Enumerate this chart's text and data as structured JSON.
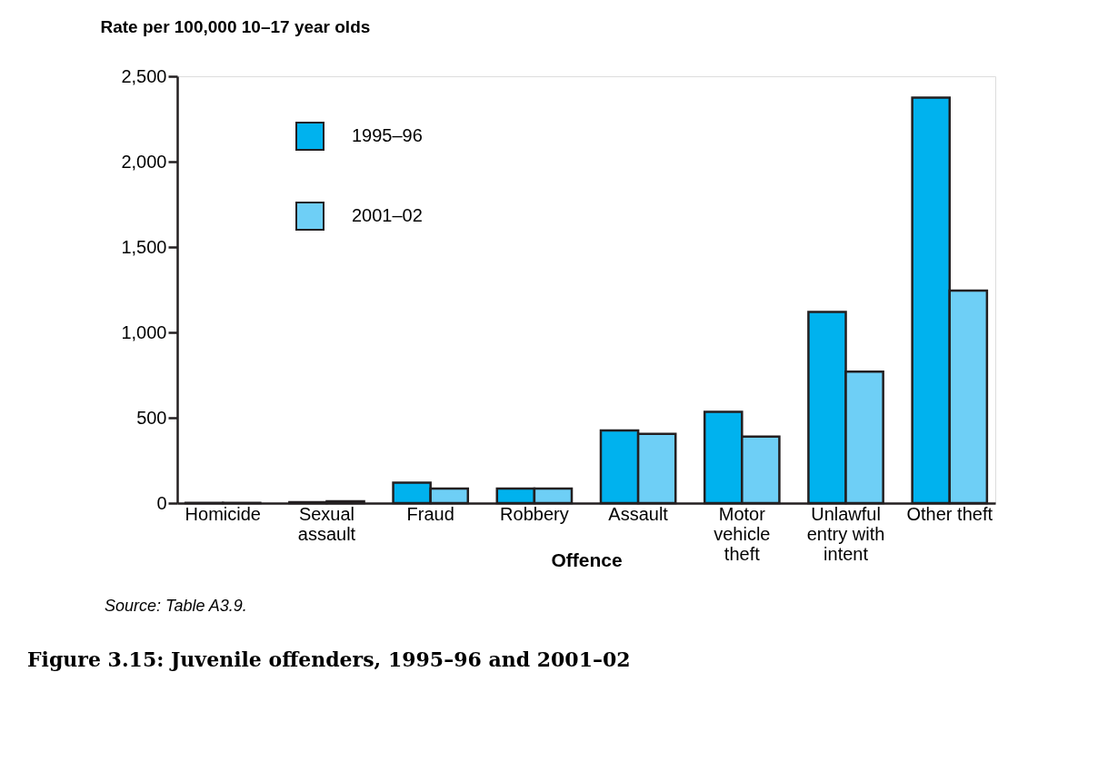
{
  "chart_data": {
    "type": "bar",
    "title": "Figure 3.15: Juvenile offenders, 1995–96 and 2001–02",
    "xlabel": "Offence",
    "ylabel": "Rate per 100,000 10–17 year olds",
    "categories": [
      "Homicide",
      "Sexual\nassault",
      "Fraud",
      "Robbery",
      "Assault",
      "Motor\nvehicle\ntheft",
      "Unlawful\nentry with\nintent",
      "Other theft"
    ],
    "series": [
      {
        "name": "1995–96",
        "color": "#00b2ee",
        "values": [
          1,
          5,
          120,
          85,
          425,
          535,
          1120,
          2375
        ]
      },
      {
        "name": "2001–02",
        "color": "#6ecff6",
        "values": [
          1,
          10,
          85,
          85,
          405,
          390,
          770,
          1245
        ]
      }
    ],
    "ylim": [
      0,
      2500
    ],
    "yticks": [
      0,
      500,
      {
        "value": 1000,
        "label": "1,000"
      },
      {
        "value": 1500,
        "label": "1,500"
      },
      {
        "value": 2000,
        "label": "2,000"
      },
      {
        "value": 2500,
        "label": "2,500"
      }
    ],
    "grid": false,
    "legend": "top left",
    "annotations": [
      "Source: Table A3.9."
    ]
  }
}
